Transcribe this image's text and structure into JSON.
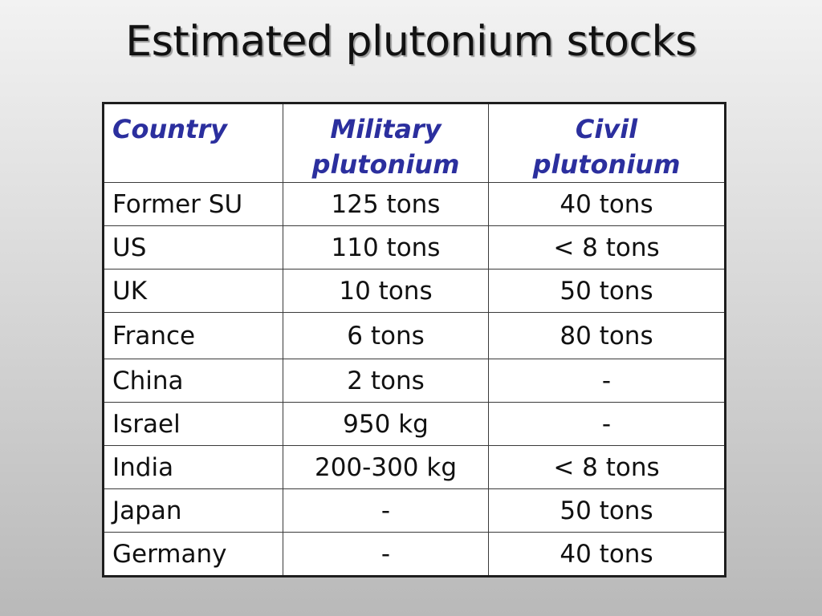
{
  "title": "Estimated plutonium stocks",
  "table": {
    "headers": {
      "country": "Country",
      "military_line1": "Military",
      "military_line2": "plutonium",
      "civil_line1": "Civil",
      "civil_line2": "plutonium"
    },
    "rows": [
      {
        "country": "Former SU",
        "military": "125 tons",
        "civil": "40 tons"
      },
      {
        "country": "US",
        "military": "110 tons",
        "civil": "< 8 tons"
      },
      {
        "country": "UK",
        "military": "10 tons",
        "civil": "50 tons"
      },
      {
        "country": "France",
        "military": "6 tons",
        "civil": "80 tons"
      },
      {
        "country": "China",
        "military": "2 tons",
        "civil": "-"
      },
      {
        "country": "Israel",
        "military": "950 kg",
        "civil": "-"
      },
      {
        "country": "India",
        "military": "200-300 kg",
        "civil": "< 8 tons"
      },
      {
        "country": "Japan",
        "military": "-",
        "civil": "50 tons"
      },
      {
        "country": "Germany",
        "military": "-",
        "civil": "40 tons"
      }
    ]
  },
  "colors": {
    "header_text": "#2b2f9e",
    "background_top": "#f2f2f2",
    "background_bottom": "#b9b9b9"
  }
}
